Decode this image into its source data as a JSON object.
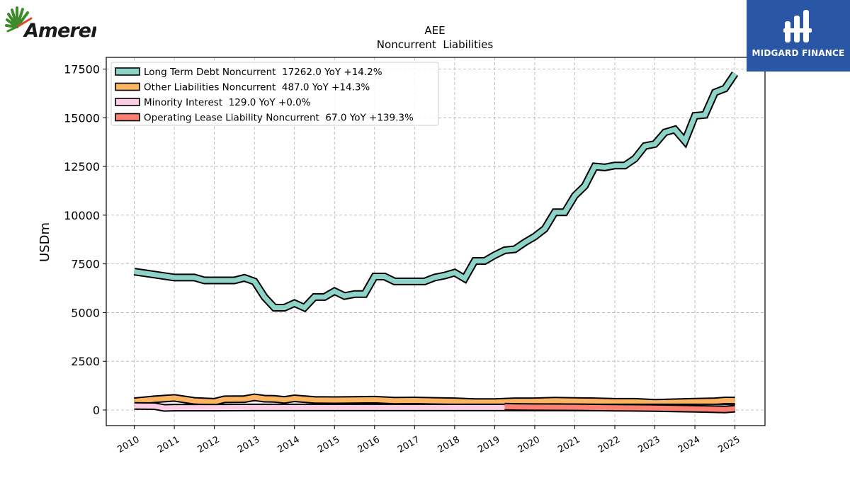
{
  "company_logo": {
    "text": "Ameren"
  },
  "brand": {
    "name": "MIDGARD FINANCE",
    "background": "#2a56a6"
  },
  "chart_data": {
    "type": "line",
    "title": "AEE",
    "subtitle": "Noncurrent  Liabilities",
    "ylabel": "USDm",
    "xlabel": "",
    "ylim": [
      -800,
      18100
    ],
    "xlim": [
      2009.3,
      2025.75
    ],
    "yticks": [
      0,
      2500,
      5000,
      7500,
      10000,
      12500,
      15000,
      17500
    ],
    "yticklabels": [
      "0",
      "2500",
      "5000",
      "7500",
      "10000",
      "12500",
      "15000",
      "17500"
    ],
    "xticks": [
      2010,
      2011,
      2012,
      2013,
      2014,
      2015,
      2016,
      2017,
      2018,
      2019,
      2020,
      2021,
      2022,
      2023,
      2024,
      2025
    ],
    "xticklabels": [
      "2010",
      "2011",
      "2012",
      "2013",
      "2014",
      "2015",
      "2016",
      "2017",
      "2018",
      "2019",
      "2020",
      "2021",
      "2022",
      "2023",
      "2024",
      "2025"
    ],
    "grid": true,
    "legend_position": "upper-left",
    "series": [
      {
        "name": "Long Term Debt Noncurrent  17262.0 YoY +14.2%",
        "color": "#8dd3c7",
        "x": [
          2010.0,
          2011.0,
          2011.5,
          2011.75,
          2012.0,
          2012.25,
          2012.5,
          2012.75,
          2013.0,
          2013.25,
          2013.5,
          2013.75,
          2014.0,
          2014.25,
          2014.5,
          2014.75,
          2015.0,
          2015.25,
          2015.5,
          2015.75,
          2016.0,
          2016.25,
          2016.5,
          2016.75,
          2017.0,
          2017.25,
          2017.5,
          2017.75,
          2018.0,
          2018.25,
          2018.5,
          2018.75,
          2019.0,
          2019.25,
          2019.5,
          2019.75,
          2020.0,
          2020.25,
          2020.5,
          2020.75,
          2021.0,
          2021.25,
          2021.5,
          2021.75,
          2022.0,
          2022.25,
          2022.5,
          2022.75,
          2023.0,
          2023.25,
          2023.5,
          2023.75,
          2024.0,
          2024.25,
          2024.5,
          2024.75,
          2025.0
        ],
        "values": [
          7100,
          6800,
          6800,
          6650,
          6650,
          6650,
          6650,
          6780,
          6600,
          5800,
          5250,
          5250,
          5480,
          5250,
          5800,
          5800,
          6100,
          5850,
          5950,
          5950,
          6850,
          6850,
          6600,
          6600,
          6600,
          6600,
          6800,
          6900,
          7050,
          6750,
          7650,
          7650,
          7950,
          8200,
          8250,
          8600,
          8900,
          9300,
          10150,
          10150,
          11000,
          11500,
          12500,
          12450,
          12550,
          12550,
          12900,
          13550,
          13650,
          14250,
          14400,
          13800,
          15100,
          15150,
          16300,
          16500,
          17262
        ]
      },
      {
        "name": "Other Liabilities Noncurrent  487.0 YoY +14.3%",
        "color": "#fdb462",
        "x": [
          2010.0,
          2010.5,
          2011.0,
          2011.5,
          2012.0,
          2012.25,
          2012.75,
          2013.0,
          2013.25,
          2013.5,
          2013.75,
          2014.0,
          2014.5,
          2015.0,
          2016.0,
          2016.5,
          2017.0,
          2017.5,
          2018.0,
          2018.5,
          2019.0,
          2019.5,
          2020.0,
          2020.5,
          2021.0,
          2021.5,
          2022.0,
          2022.5,
          2023.0,
          2023.5,
          2024.0,
          2024.5,
          2024.75,
          2025.0
        ],
        "values": [
          450,
          550,
          620,
          470,
          420,
          550,
          560,
          650,
          580,
          570,
          520,
          600,
          520,
          510,
          530,
          480,
          490,
          470,
          450,
          410,
          410,
          450,
          450,
          480,
          460,
          450,
          420,
          420,
          370,
          400,
          430,
          450,
          490,
          487
        ]
      },
      {
        "name": "Minority Interest  129.0 YoY +0.0%",
        "color": "#fccde5",
        "x": [
          2010.0,
          2010.5,
          2010.75,
          2011.0,
          2012.0,
          2013.0,
          2014.0,
          2015.0,
          2016.0,
          2017.0,
          2018.0,
          2019.0,
          2020.0,
          2021.0,
          2022.0,
          2023.0,
          2024.0,
          2025.0
        ],
        "values": [
          210,
          200,
          110,
          125,
          125,
          129,
          129,
          129,
          129,
          129,
          129,
          129,
          129,
          129,
          129,
          129,
          129,
          129
        ]
      },
      {
        "name": "Operating Lease Liability Noncurrent  67.0 YoY +139.3%",
        "color": "#fb8072",
        "x": [
          2019.25,
          2019.5,
          2020.0,
          2021.0,
          2022.0,
          2023.0,
          2024.0,
          2024.5,
          2024.75,
          2025.0
        ],
        "values": [
          170,
          160,
          150,
          140,
          120,
          100,
          60,
          40,
          28,
          67
        ]
      }
    ]
  }
}
